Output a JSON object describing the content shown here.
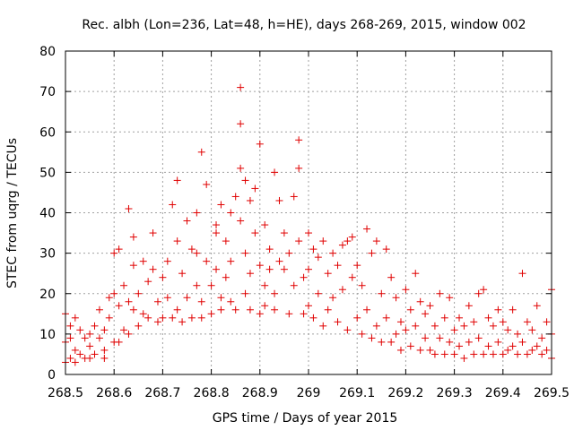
{
  "chart_data": {
    "type": "scatter",
    "title": "Rec. albh (Lon=236, Lat=48, h=HE), days 268-269, 2015, window 002",
    "xlabel": "GPS time / Days of year 2015",
    "ylabel": "STEC from uqrg / TECUs",
    "xlim": [
      268.5,
      269.5
    ],
    "ylim": [
      0,
      80
    ],
    "x_ticks": [
      268.5,
      268.6,
      268.7,
      268.8,
      268.9,
      269,
      269.1,
      269.2,
      269.3,
      269.4,
      269.5
    ],
    "x_tick_labels": [
      "268.5",
      "268.6",
      "268.7",
      "268.8",
      "268.9",
      "269",
      "269.1",
      "269.2",
      "269.3",
      "269.4",
      "269.5"
    ],
    "y_ticks": [
      0,
      10,
      20,
      30,
      40,
      50,
      60,
      70,
      80
    ],
    "y_tick_labels": [
      "0",
      "10",
      "20",
      "30",
      "40",
      "50",
      "60",
      "70",
      "80"
    ],
    "grid": true,
    "legend": "none",
    "marker": "plus",
    "color": "#e00000",
    "points": [
      [
        268.5,
        3
      ],
      [
        268.5,
        8
      ],
      [
        268.5,
        15
      ],
      [
        268.51,
        4
      ],
      [
        268.51,
        9
      ],
      [
        268.51,
        12
      ],
      [
        268.52,
        3
      ],
      [
        268.52,
        6
      ],
      [
        268.52,
        14
      ],
      [
        268.53,
        5
      ],
      [
        268.53,
        11
      ],
      [
        268.54,
        4
      ],
      [
        268.54,
        9
      ],
      [
        268.55,
        10
      ],
      [
        268.55,
        4
      ],
      [
        268.55,
        7
      ],
      [
        268.56,
        12
      ],
      [
        268.56,
        5
      ],
      [
        268.57,
        9
      ],
      [
        268.57,
        16
      ],
      [
        268.58,
        6
      ],
      [
        268.58,
        11
      ],
      [
        268.58,
        4
      ],
      [
        268.59,
        14
      ],
      [
        268.59,
        19
      ],
      [
        268.6,
        8
      ],
      [
        268.6,
        20
      ],
      [
        268.6,
        30
      ],
      [
        268.61,
        31
      ],
      [
        268.61,
        17
      ],
      [
        268.61,
        8
      ],
      [
        268.62,
        11
      ],
      [
        268.62,
        22
      ],
      [
        268.63,
        41
      ],
      [
        268.63,
        18
      ],
      [
        268.63,
        10
      ],
      [
        268.64,
        27
      ],
      [
        268.64,
        16
      ],
      [
        268.64,
        34
      ],
      [
        268.65,
        12
      ],
      [
        268.65,
        20
      ],
      [
        268.66,
        28
      ],
      [
        268.66,
        15
      ],
      [
        268.67,
        14
      ],
      [
        268.67,
        23
      ],
      [
        268.68,
        35
      ],
      [
        268.68,
        26
      ],
      [
        268.69,
        13
      ],
      [
        268.69,
        18
      ],
      [
        268.7,
        14
      ],
      [
        268.7,
        24
      ],
      [
        268.71,
        19
      ],
      [
        268.71,
        28
      ],
      [
        268.72,
        14
      ],
      [
        268.72,
        42
      ],
      [
        268.73,
        33
      ],
      [
        268.73,
        48
      ],
      [
        268.73,
        16
      ],
      [
        268.74,
        25
      ],
      [
        268.74,
        13
      ],
      [
        268.75,
        38
      ],
      [
        268.75,
        19
      ],
      [
        268.76,
        31
      ],
      [
        268.76,
        14
      ],
      [
        268.77,
        40
      ],
      [
        268.77,
        22
      ],
      [
        268.77,
        30
      ],
      [
        268.78,
        55
      ],
      [
        268.78,
        18
      ],
      [
        268.78,
        14
      ],
      [
        268.79,
        47
      ],
      [
        268.79,
        28
      ],
      [
        268.8,
        22
      ],
      [
        268.8,
        15
      ],
      [
        268.81,
        37
      ],
      [
        268.81,
        35
      ],
      [
        268.81,
        26
      ],
      [
        268.82,
        42
      ],
      [
        268.82,
        19
      ],
      [
        268.82,
        16
      ],
      [
        268.83,
        33
      ],
      [
        268.83,
        24
      ],
      [
        268.84,
        40
      ],
      [
        268.84,
        28
      ],
      [
        268.84,
        18
      ],
      [
        268.85,
        44
      ],
      [
        268.85,
        16
      ],
      [
        268.86,
        71
      ],
      [
        268.86,
        62
      ],
      [
        268.86,
        51
      ],
      [
        268.86,
        38
      ],
      [
        268.87,
        48
      ],
      [
        268.87,
        30
      ],
      [
        268.87,
        20
      ],
      [
        268.88,
        43
      ],
      [
        268.88,
        25
      ],
      [
        268.88,
        16
      ],
      [
        268.89,
        46
      ],
      [
        268.89,
        35
      ],
      [
        268.9,
        57
      ],
      [
        268.9,
        27
      ],
      [
        268.9,
        15
      ],
      [
        268.91,
        37
      ],
      [
        268.91,
        22
      ],
      [
        268.91,
        17
      ],
      [
        268.92,
        31
      ],
      [
        268.92,
        26
      ],
      [
        268.93,
        50
      ],
      [
        268.93,
        20
      ],
      [
        268.93,
        16
      ],
      [
        268.94,
        43
      ],
      [
        268.94,
        28
      ],
      [
        268.95,
        35
      ],
      [
        268.95,
        26
      ],
      [
        268.96,
        30
      ],
      [
        268.96,
        15
      ],
      [
        268.97,
        44
      ],
      [
        268.97,
        22
      ],
      [
        268.98,
        51
      ],
      [
        268.98,
        58
      ],
      [
        268.98,
        33
      ],
      [
        268.99,
        24
      ],
      [
        268.99,
        15
      ],
      [
        269,
        35
      ],
      [
        269,
        26
      ],
      [
        269,
        17
      ],
      [
        269.01,
        31
      ],
      [
        269.01,
        14
      ],
      [
        269.02,
        29
      ],
      [
        269.02,
        20
      ],
      [
        269.03,
        33
      ],
      [
        269.03,
        12
      ],
      [
        269.04,
        25
      ],
      [
        269.04,
        16
      ],
      [
        269.05,
        30
      ],
      [
        269.05,
        19
      ],
      [
        269.06,
        27
      ],
      [
        269.06,
        13
      ],
      [
        269.07,
        32
      ],
      [
        269.07,
        21
      ],
      [
        269.08,
        33
      ],
      [
        269.08,
        11
      ],
      [
        269.09,
        34
      ],
      [
        269.09,
        24
      ],
      [
        269.1,
        27
      ],
      [
        269.1,
        14
      ],
      [
        269.11,
        22
      ],
      [
        269.11,
        10
      ],
      [
        269.12,
        36
      ],
      [
        269.12,
        16
      ],
      [
        269.13,
        30
      ],
      [
        269.13,
        9
      ],
      [
        269.14,
        33
      ],
      [
        269.14,
        12
      ],
      [
        269.15,
        20
      ],
      [
        269.15,
        8
      ],
      [
        269.16,
        31
      ],
      [
        269.16,
        14
      ],
      [
        269.17,
        24
      ],
      [
        269.17,
        8
      ],
      [
        269.18,
        19
      ],
      [
        269.18,
        10
      ],
      [
        269.19,
        13
      ],
      [
        269.19,
        6
      ],
      [
        269.2,
        21
      ],
      [
        269.2,
        11
      ],
      [
        269.21,
        16
      ],
      [
        269.21,
        7
      ],
      [
        269.22,
        25
      ],
      [
        269.22,
        12
      ],
      [
        269.23,
        18
      ],
      [
        269.23,
        6
      ],
      [
        269.24,
        15
      ],
      [
        269.24,
        9
      ],
      [
        269.25,
        17
      ],
      [
        269.25,
        6
      ],
      [
        269.26,
        12
      ],
      [
        269.26,
        5
      ],
      [
        269.27,
        20
      ],
      [
        269.27,
        9
      ],
      [
        269.28,
        14
      ],
      [
        269.28,
        5
      ],
      [
        269.29,
        19
      ],
      [
        269.29,
        8
      ],
      [
        269.3,
        11
      ],
      [
        269.3,
        5
      ],
      [
        269.31,
        14
      ],
      [
        269.31,
        7
      ],
      [
        269.32,
        12
      ],
      [
        269.32,
        4
      ],
      [
        269.33,
        17
      ],
      [
        269.33,
        8
      ],
      [
        269.34,
        13
      ],
      [
        269.34,
        5
      ],
      [
        269.35,
        20
      ],
      [
        269.35,
        9
      ],
      [
        269.36,
        21
      ],
      [
        269.36,
        5
      ],
      [
        269.37,
        14
      ],
      [
        269.37,
        7
      ],
      [
        269.38,
        12
      ],
      [
        269.38,
        5
      ],
      [
        269.39,
        16
      ],
      [
        269.39,
        8
      ],
      [
        269.4,
        13
      ],
      [
        269.4,
        5
      ],
      [
        269.41,
        11
      ],
      [
        269.41,
        6
      ],
      [
        269.42,
        16
      ],
      [
        269.42,
        7
      ],
      [
        269.43,
        10
      ],
      [
        269.43,
        5
      ],
      [
        269.44,
        25
      ],
      [
        269.44,
        8
      ],
      [
        269.45,
        13
      ],
      [
        269.45,
        5
      ],
      [
        269.46,
        11
      ],
      [
        269.46,
        6
      ],
      [
        269.47,
        17
      ],
      [
        269.47,
        7
      ],
      [
        269.48,
        9
      ],
      [
        269.48,
        5
      ],
      [
        269.49,
        13
      ],
      [
        269.49,
        6
      ],
      [
        269.5,
        21
      ],
      [
        269.5,
        10
      ],
      [
        269.5,
        4
      ]
    ]
  }
}
